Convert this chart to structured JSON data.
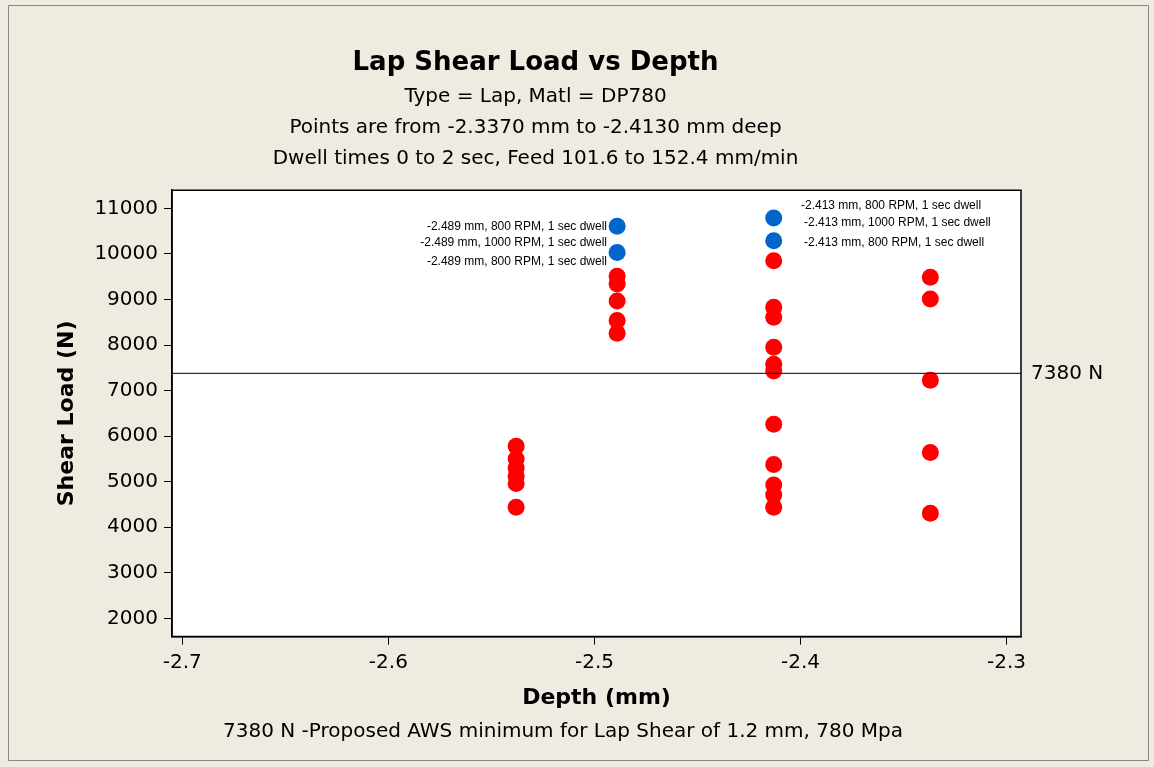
{
  "chart_data": {
    "type": "scatter",
    "title": "Lap Shear Load vs Depth",
    "subtitle": "Type = Lap, Matl = DP780\nPoints are from -2.3370 mm to -2.4130 mm deep\nDwell times 0 to 2 sec, Feed 101.6 to 152.4 mm/min",
    "xlabel": "Depth (mm)",
    "ylabel": "Shear Load (N)",
    "series": [
      {
        "color": "#ff0000",
        "x": [
          -2.538,
          -2.538,
          -2.538,
          -2.538,
          -2.538,
          -2.538,
          -2.489,
          -2.489,
          -2.489,
          -2.489,
          -2.489,
          -2.413,
          -2.413,
          -2.413,
          -2.413,
          -2.413,
          -2.413,
          -2.413,
          -2.413,
          -2.413,
          -2.413,
          -2.413,
          -2.337,
          -2.337,
          -2.337,
          -2.337,
          -2.337
        ],
        "values": [
          5780,
          5500,
          5300,
          5120,
          4960,
          4440,
          9510,
          9340,
          8970,
          8540,
          8260,
          9850,
          8830,
          8610,
          7950,
          7580,
          7430,
          6260,
          5380,
          4930,
          4710,
          4440,
          9490,
          9010,
          7230,
          5640,
          4310
        ]
      },
      {
        "color": "#0066cc",
        "x": [
          -2.489,
          -2.489,
          -2.413,
          -2.413
        ],
        "values": [
          10610,
          10030,
          10790,
          10290
        ]
      }
    ],
    "marker": "circle",
    "xlim": [
      -2.705,
      -2.293
    ],
    "ylim": [
      1600,
      11400
    ],
    "xticks": [
      -2.7,
      -2.6,
      -2.5,
      -2.4,
      -2.3
    ],
    "yticks": [
      2000,
      3000,
      4000,
      5000,
      6000,
      7000,
      8000,
      9000,
      10000,
      11000
    ],
    "grid": false,
    "legend": false,
    "ref_lines": [
      {
        "axis": "y",
        "value": 7380,
        "label": "7380 N",
        "color": "#000000"
      }
    ],
    "annotations": [
      "-2.489 mm, 800 RPM, 1 sec dwell",
      "-2.489 mm, 1000 RPM, 1 sec dwell",
      "-2.489 mm, 800 RPM, 1 sec dwell",
      "-2.413 mm, 800 RPM, 1 sec dwell",
      "-2.413 mm, 1000 RPM, 1 sec dwell",
      "-2.413 mm, 800 RPM, 1 sec dwell",
      "7380 N -Proposed AWS minimum for Lap Shear of 1.2 mm, 780 Mpa"
    ]
  }
}
